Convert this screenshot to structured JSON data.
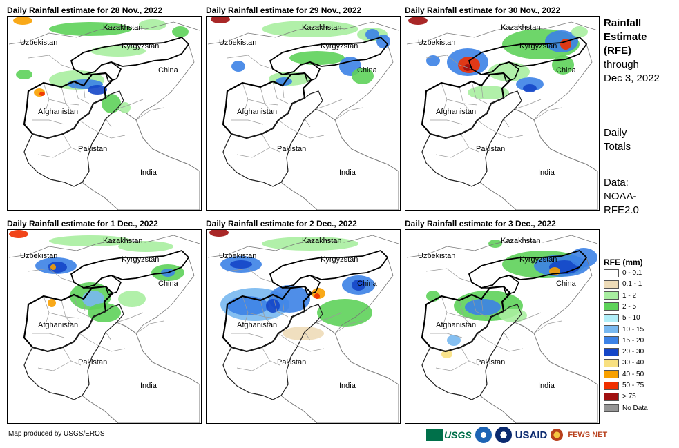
{
  "panels": [
    {
      "title": "Daily Rainfall estimate for 28 Nov., 2022",
      "rain": "nov28"
    },
    {
      "title": "Daily Rainfall estimate for 29 Nov., 2022",
      "rain": "nov29"
    },
    {
      "title": "Daily Rainfall estimate for 30 Nov., 2022",
      "rain": "nov30"
    },
    {
      "title": "Daily Rainfall estimate for 1 Dec., 2022",
      "rain": "dec1"
    },
    {
      "title": "Daily Rainfall estimate for 2 Dec., 2022",
      "rain": "dec2"
    },
    {
      "title": "Daily Rainfall estimate for 3 Dec., 2022",
      "rain": "dec3"
    }
  ],
  "map_labels": {
    "kazakhstan": "Kazakhstan",
    "uzbekistan": "Uzbekistan",
    "kyrgyzstan": "Kyrgyzstan",
    "china": "China",
    "afghanistan": "Afghanistan",
    "pakistan": "Pakistan",
    "india": "India"
  },
  "sidebar": {
    "title_lines": [
      "Rainfall",
      "Estimate",
      "(RFE)"
    ],
    "through_lines": [
      "through",
      "Dec 3, 2022"
    ],
    "daily_lines": [
      "Daily",
      "Totals"
    ],
    "data_lines": [
      "Data:",
      "NOAA-",
      "RFE2.0"
    ]
  },
  "legend": {
    "title": "RFE (mm)",
    "items": [
      {
        "label": "0 - 0.1",
        "color": "#ffffff"
      },
      {
        "label": "0.1 - 1",
        "color": "#eedcb8"
      },
      {
        "label": "1 - 2",
        "color": "#a8eea0"
      },
      {
        "label": "2 - 5",
        "color": "#5ed25a"
      },
      {
        "label": "5 - 10",
        "color": "#b0eef8"
      },
      {
        "label": "10 - 15",
        "color": "#78b8f0"
      },
      {
        "label": "15 - 20",
        "color": "#3c82e6"
      },
      {
        "label": "20 - 30",
        "color": "#1446c8"
      },
      {
        "label": "30 - 40",
        "color": "#f8e080"
      },
      {
        "label": "40 - 50",
        "color": "#f8a000"
      },
      {
        "label": "50 - 75",
        "color": "#f03000"
      },
      {
        "label": "> 75",
        "color": "#a01010"
      },
      {
        "label": "No Data",
        "color": "#969696"
      }
    ]
  },
  "credit": "Map produced by USGS/EROS",
  "logos": {
    "usgs": "USGS",
    "usaid": "USAID",
    "fews": "FEWS NET"
  }
}
